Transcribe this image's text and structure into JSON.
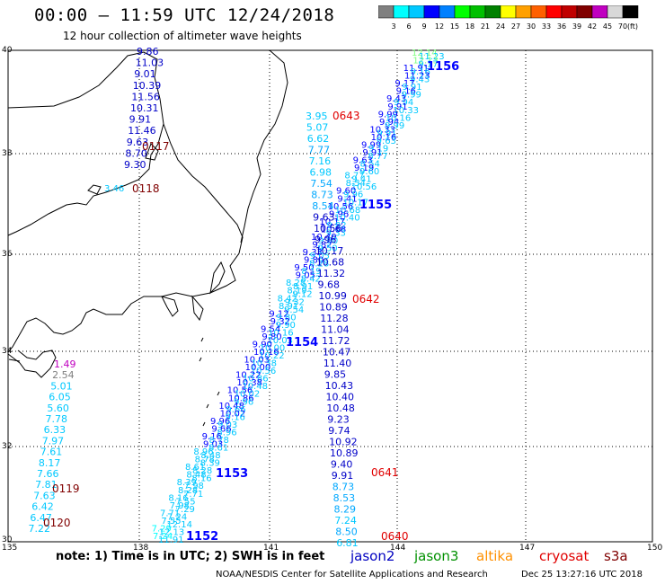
{
  "header": {
    "title": "00:00 – 11:59 UTC 12/24/2018",
    "subtitle": "12 hour collection of altimeter wave heights"
  },
  "legend": {
    "unit": "(ft)",
    "colors": [
      "#808080",
      "#00ffff",
      "#00c8ff",
      "#0000ff",
      "#0080ff",
      "#00ff00",
      "#00c000",
      "#008000",
      "#ffff00",
      "#ffa000",
      "#ff6000",
      "#ff0000",
      "#c00000",
      "#800000",
      "#c000c0",
      "#d8d8d8",
      "#000000"
    ],
    "ticks": [
      "3",
      "6",
      "9",
      "12",
      "15",
      "18",
      "21",
      "24",
      "27",
      "30",
      "33",
      "36",
      "39",
      "42",
      "45",
      "70"
    ]
  },
  "axes": {
    "lat_labels": [
      "40",
      "38",
      "36",
      "34",
      "32",
      "30"
    ],
    "lon_labels": [
      "135",
      "138",
      "141",
      "144",
      "147",
      "150"
    ]
  },
  "tracks": [
    {
      "satellite": "jason2",
      "label": "1156",
      "label_color": "#0000ff",
      "values": [
        "12.14",
        "12.13",
        "11.91",
        "11.23",
        "9.17",
        "9.16",
        "9.43",
        "9.91",
        "9.99",
        "9.94",
        "10.33",
        "10.16",
        "9.99",
        "9.91",
        "9.63",
        "9.19",
        "8.77",
        "8.54",
        "9.60",
        "9.41",
        "10.56",
        "9.96",
        "10.17",
        "10.68",
        "10.40",
        "9.82",
        "9.33",
        "9.80",
        "9.50",
        "9.05",
        "8.28",
        "8.19",
        "8.42",
        "8.91",
        "9.12",
        "9.32",
        "9.54",
        "9.80",
        "9.90",
        "10.16",
        "10.03",
        "10.00",
        "10.22",
        "10.38",
        "10.56",
        "10.86",
        "10.48",
        "10.02",
        "9.96",
        "9.66",
        "9.16",
        "9.03",
        "8.96",
        "8.78",
        "8.61",
        "8.48",
        "8.39",
        "8.28",
        "8.16",
        "7.98",
        "7.71",
        "7.55",
        "7.29",
        "7.24"
      ]
    },
    {
      "satellite": "jason2",
      "label": "1155",
      "label_color": "#0000ff",
      "values": []
    },
    {
      "satellite": "jason2",
      "label": "1154",
      "label_color": "#0000ff",
      "values": []
    },
    {
      "satellite": "jason2",
      "label": "1153",
      "label_color": "#0000ff",
      "values": []
    },
    {
      "satellite": "jason2",
      "label": "1152",
      "label_color": "#0000ff",
      "values": []
    }
  ],
  "track_columns": [
    {
      "id": "c0643",
      "label": "0643",
      "label_color": "#ff0000",
      "values": [
        "3.95",
        "5.07",
        "6.62",
        "7.77",
        "7.16",
        "6.98",
        "7.54",
        "8.73",
        "8.54",
        "9.63",
        "10.56",
        "9.96",
        "10.17",
        "10.68",
        "11.32",
        "9.68",
        "10.99",
        "10.89",
        "11.28",
        "11.04",
        "11.72",
        "10.47",
        "11.40",
        "9.85",
        "10.43",
        "10.40",
        "10.48",
        "9.23",
        "9.74",
        "10.92",
        "10.89",
        "9.40",
        "9.91",
        "8.73",
        "8.53",
        "8.29",
        "7.24",
        "8.50",
        "6.81"
      ]
    },
    {
      "id": "c0117",
      "label": "0117",
      "label_color": "#800000",
      "values": [
        "9.86",
        "11.03",
        "9.01",
        "10.39",
        "11.56",
        "10.31",
        "9.91",
        "11.46",
        "9.63",
        "8.70",
        "9.30"
      ]
    },
    {
      "id": "c0119",
      "label": "0119",
      "label_color": "#800000",
      "values": [
        "1.49",
        "2.54",
        "5.01",
        "6.05",
        "5.60",
        "7.78",
        "6.33",
        "7.97",
        "7.61",
        "8.17",
        "7.66",
        "7.81",
        "7.63",
        "6.42",
        "6.47",
        "7.22"
      ]
    }
  ],
  "labels": {
    "l0643": "0643",
    "l0642": "0642",
    "l0641": "0641",
    "l0640": "0640",
    "l0117": "0117",
    "l0118": "0118",
    "l0119": "0119",
    "l0120": "0120",
    "l1156": "1156",
    "l1155": "1155",
    "l1154": "1154",
    "l1153": "1153",
    "l1152": "1152",
    "v346": "3.46"
  },
  "footer": {
    "note": "note:  1) Time is in UTC;  2) SWH is in feet",
    "sats": [
      {
        "name": "jason2",
        "color": "#0000c0"
      },
      {
        "name": "jason3",
        "color": "#009000"
      },
      {
        "name": "altika",
        "color": "#ff9000"
      },
      {
        "name": "cryosat",
        "color": "#e00000"
      },
      {
        "name": "s3a",
        "color": "#800000"
      }
    ],
    "credit": "NOAA/NESDIS Center for Satellite Applications and Research",
    "stamp": "Dec 25 13:27:16 UTC 2018"
  }
}
